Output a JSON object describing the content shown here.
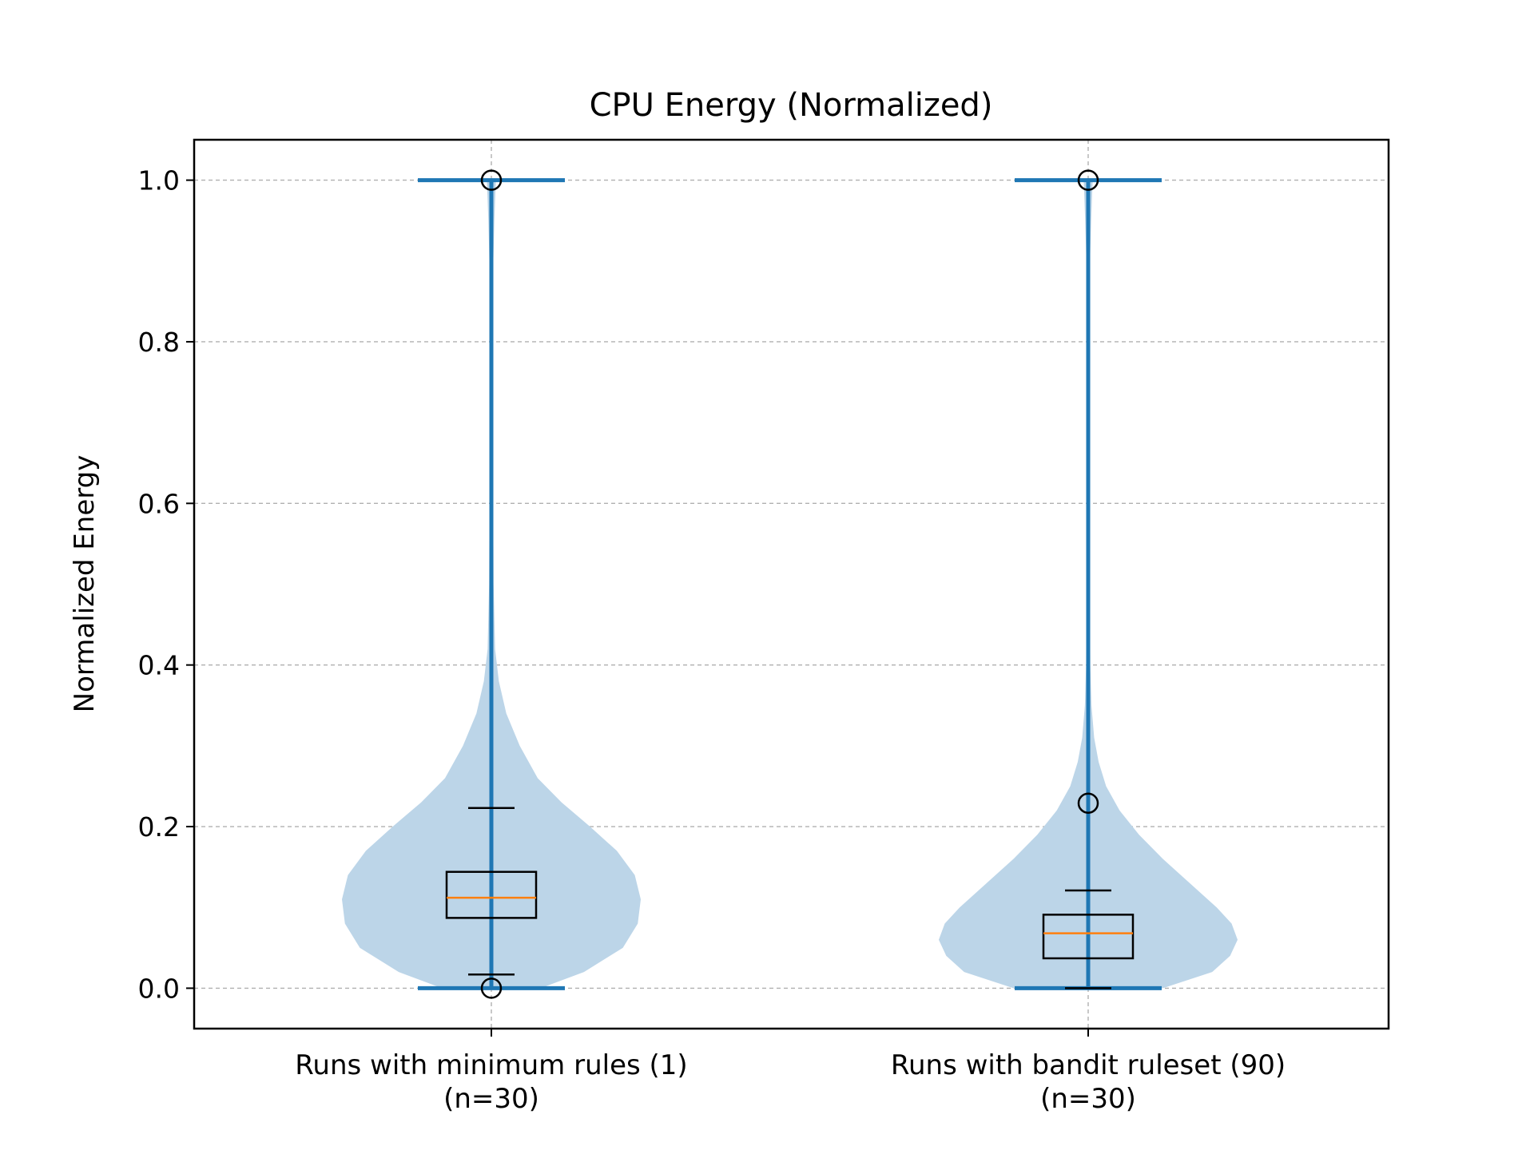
{
  "chart_data": {
    "type": "violin",
    "title": "CPU Energy (Normalized)",
    "ylabel": "Normalized Energy",
    "xlabel": "",
    "ylim": [
      -0.05,
      1.05
    ],
    "yticks": [
      0.0,
      0.2,
      0.4,
      0.6,
      0.8,
      1.0
    ],
    "ytick_labels": [
      "0.0",
      "0.2",
      "0.4",
      "0.6",
      "0.8",
      "1.0"
    ],
    "grid": true,
    "colors": {
      "violin_fill": "#bcd5e8",
      "violin_line": "#1f77b4",
      "median": "#ff7f0e",
      "box": "#000000",
      "grid": "#b0b0b0"
    },
    "groups": [
      {
        "label_line1": "Runs with minimum rules (1)",
        "label_line2": "(n=30)",
        "min": 0.0,
        "max": 1.0,
        "box": {
          "q1": 0.087,
          "median": 0.112,
          "q3": 0.144,
          "whisker_low": 0.017,
          "whisker_high": 0.223
        },
        "outliers": [
          0.0,
          1.0
        ],
        "density": [
          [
            0.0,
            0.33
          ],
          [
            0.02,
            0.62
          ],
          [
            0.05,
            0.88
          ],
          [
            0.08,
            0.98
          ],
          [
            0.11,
            1.0
          ],
          [
            0.14,
            0.96
          ],
          [
            0.17,
            0.84
          ],
          [
            0.2,
            0.66
          ],
          [
            0.23,
            0.47
          ],
          [
            0.26,
            0.31
          ],
          [
            0.3,
            0.19
          ],
          [
            0.34,
            0.1
          ],
          [
            0.38,
            0.05
          ],
          [
            0.42,
            0.025
          ],
          [
            0.5,
            0.015
          ],
          [
            0.6,
            0.012
          ],
          [
            0.7,
            0.011
          ],
          [
            0.8,
            0.011
          ],
          [
            0.9,
            0.013
          ],
          [
            0.95,
            0.02
          ],
          [
            1.0,
            0.03
          ]
        ]
      },
      {
        "label_line1": "Runs with bandit ruleset (90)",
        "label_line2": "(n=30)",
        "min": 0.0,
        "max": 1.0,
        "box": {
          "q1": 0.037,
          "median": 0.068,
          "q3": 0.091,
          "whisker_low": 0.0,
          "whisker_high": 0.121
        },
        "outliers": [
          0.229,
          1.0
        ],
        "density": [
          [
            0.0,
            0.5
          ],
          [
            0.02,
            0.83
          ],
          [
            0.04,
            0.95
          ],
          [
            0.06,
            1.0
          ],
          [
            0.08,
            0.96
          ],
          [
            0.1,
            0.86
          ],
          [
            0.13,
            0.68
          ],
          [
            0.16,
            0.5
          ],
          [
            0.19,
            0.34
          ],
          [
            0.22,
            0.21
          ],
          [
            0.25,
            0.12
          ],
          [
            0.28,
            0.07
          ],
          [
            0.31,
            0.04
          ],
          [
            0.35,
            0.022
          ],
          [
            0.4,
            0.014
          ],
          [
            0.5,
            0.011
          ],
          [
            0.6,
            0.01
          ],
          [
            0.7,
            0.01
          ],
          [
            0.8,
            0.01
          ],
          [
            0.9,
            0.012
          ],
          [
            0.95,
            0.02
          ],
          [
            1.0,
            0.03
          ]
        ]
      }
    ]
  }
}
